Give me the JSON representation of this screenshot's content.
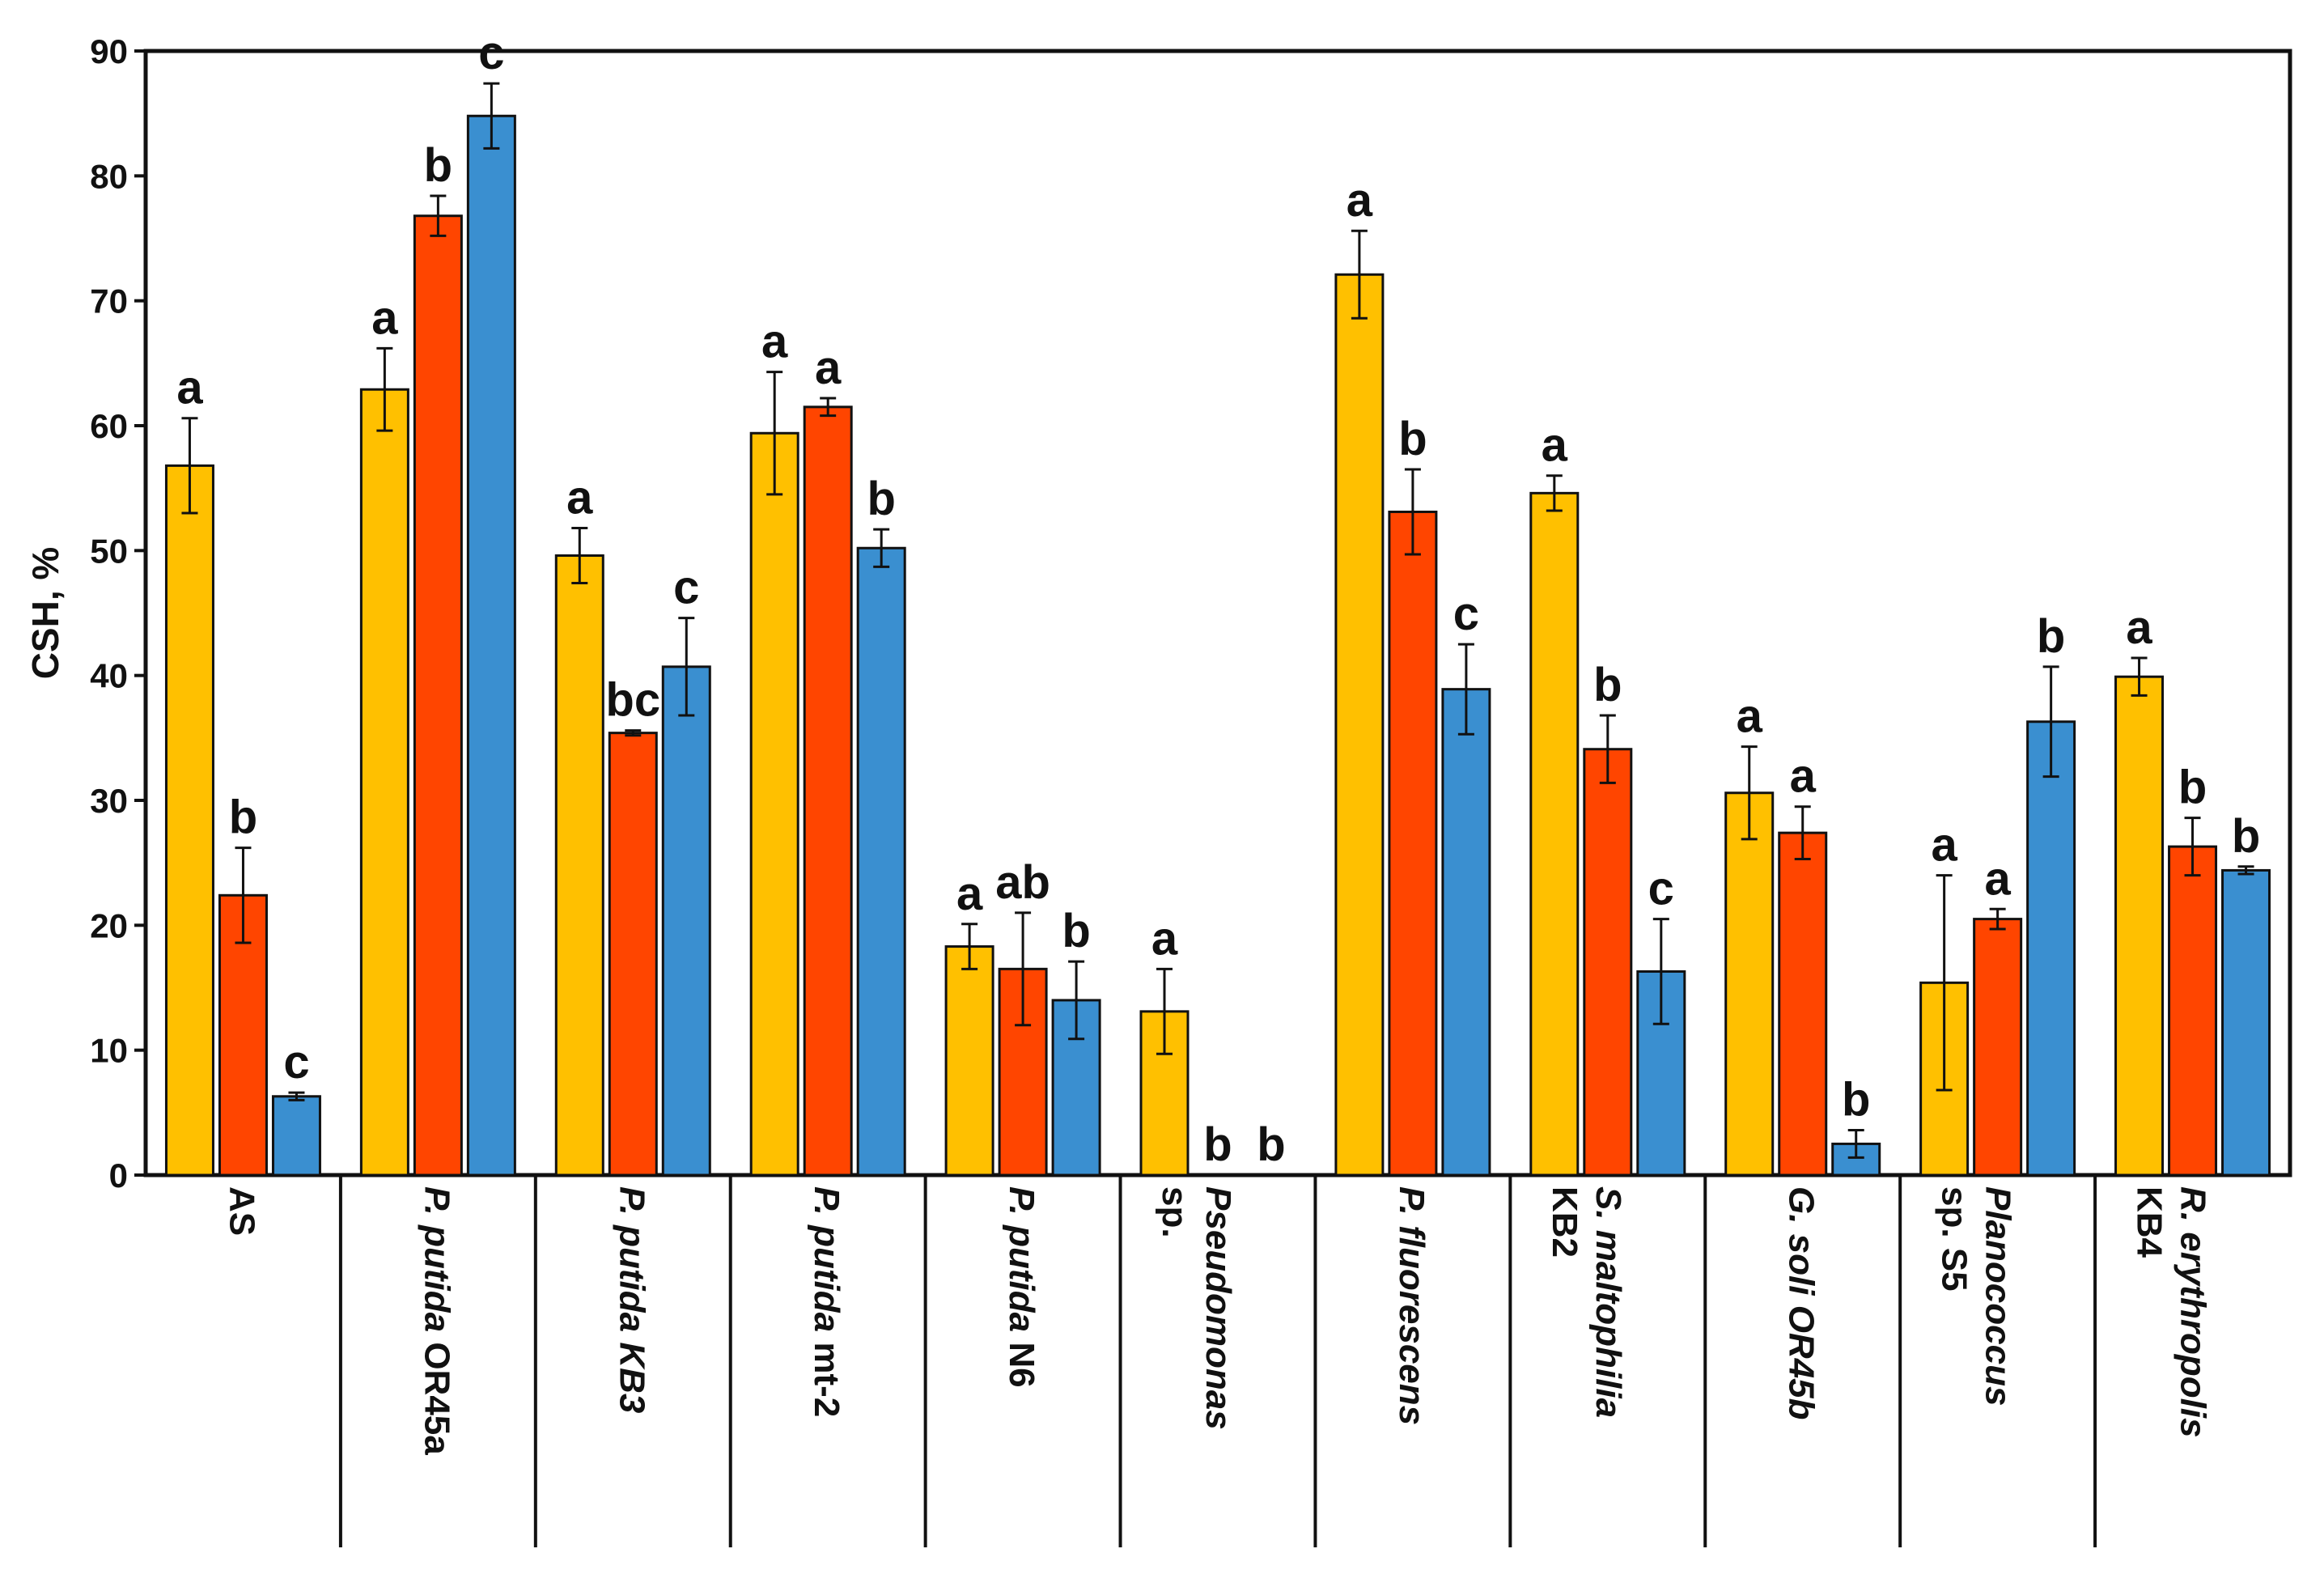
{
  "chart_data": {
    "type": "bar",
    "title": "",
    "xlabel": "",
    "ylabel": "CSH, %",
    "ylim": [
      0,
      90
    ],
    "yticks": [
      0,
      10,
      20,
      30,
      40,
      50,
      60,
      70,
      80,
      90
    ],
    "grid": false,
    "legend": "none",
    "series_colors": [
      "#FFC000",
      "#FF4500",
      "#3A8FD0"
    ],
    "categories": [
      {
        "line1": "AS",
        "line1_italic": false,
        "line2": "",
        "line2_italic": false
      },
      {
        "line1": "P. putida",
        "line1_italic": true,
        "line2": " OR45a",
        "line2_italic": false
      },
      {
        "line1": "P. putida KB3",
        "line1_italic": true,
        "line2": "",
        "line2_italic": false
      },
      {
        "line1": "P. putida",
        "line1_italic": true,
        "line2": " mt-2",
        "line2_italic": false
      },
      {
        "line1": "P. putida",
        "line1_italic": true,
        "line2": " N6",
        "line2_italic": false
      },
      {
        "line1": "Pseudomonas",
        "line1_italic": true,
        "line2": "sp.",
        "line2_italic": false
      },
      {
        "line1": "P. fluorescens",
        "line1_italic": true,
        "line2": "",
        "line2_italic": false
      },
      {
        "line1": "S. maltophilia",
        "line1_italic": true,
        "line2": "KB2",
        "line2_italic": false
      },
      {
        "line1": "G. soli OR45b",
        "line1_italic": true,
        "line2": "",
        "line2_italic": false
      },
      {
        "line1": "Planococcus",
        "line1_italic": true,
        "line2": "sp. S5",
        "line2_italic": false
      },
      {
        "line1": "R. erythropolis",
        "line1_italic": true,
        "line2": "KB4",
        "line2_italic": false
      }
    ],
    "series": [
      {
        "name": "series-1",
        "color": "#FFC000",
        "values": [
          56.8,
          62.9,
          49.6,
          59.4,
          18.3,
          13.1,
          72.1,
          54.6,
          30.6,
          15.4,
          39.9
        ],
        "errors": [
          3.8,
          3.3,
          2.2,
          4.9,
          1.8,
          3.4,
          3.5,
          1.4,
          3.7,
          8.6,
          1.5
        ],
        "labels": [
          "a",
          "a",
          "a",
          "a",
          "a",
          "a",
          "a",
          "a",
          "a",
          "a",
          "a"
        ]
      },
      {
        "name": "series-2",
        "color": "#FF4500",
        "values": [
          22.4,
          76.8,
          35.4,
          61.5,
          16.5,
          0,
          53.1,
          34.1,
          27.4,
          20.5,
          26.3
        ],
        "errors": [
          3.8,
          1.6,
          0.2,
          0.7,
          4.5,
          0,
          3.4,
          2.7,
          2.1,
          0.8,
          2.3
        ],
        "labels": [
          "b",
          "b",
          "bc",
          "a",
          "ab",
          "b",
          "b",
          "b",
          "a",
          "a",
          "b"
        ]
      },
      {
        "name": "series-3",
        "color": "#3A8FD0",
        "values": [
          6.3,
          84.8,
          40.7,
          50.2,
          14.0,
          0,
          38.9,
          16.3,
          2.5,
          36.3,
          24.4
        ],
        "errors": [
          0.3,
          2.6,
          3.9,
          1.5,
          3.1,
          0,
          3.6,
          4.2,
          1.1,
          4.4,
          0.3
        ],
        "labels": [
          "c",
          "c",
          "c",
          "b",
          "b",
          "b",
          "c",
          "c",
          "b",
          "b",
          "b"
        ]
      }
    ]
  }
}
